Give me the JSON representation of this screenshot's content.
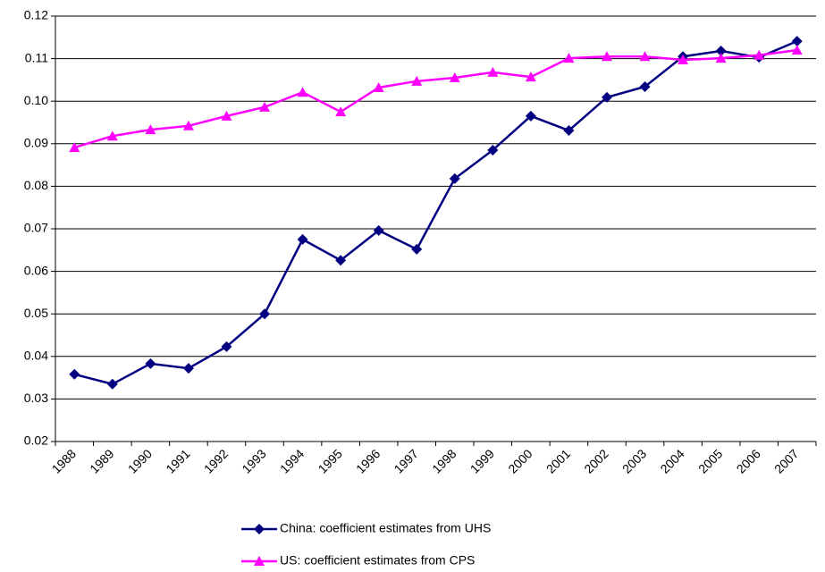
{
  "chart_data": {
    "type": "line",
    "categories": [
      "1988",
      "1989",
      "1990",
      "1991",
      "1992",
      "1993",
      "1994",
      "1995",
      "1996",
      "1997",
      "1998",
      "1999",
      "2000",
      "2001",
      "2002",
      "2003",
      "2004",
      "2005",
      "2006",
      "2007"
    ],
    "series": [
      {
        "name": "China: coefficient estimates from UHS",
        "color": "#000080",
        "marker": "diamond",
        "values": [
          0.0358,
          0.0335,
          0.0383,
          0.0372,
          0.0423,
          0.05,
          0.0675,
          0.0626,
          0.0696,
          0.0652,
          0.0818,
          0.0885,
          0.0965,
          0.0931,
          0.1009,
          0.1034,
          0.1105,
          0.1118,
          0.1103,
          0.1141
        ]
      },
      {
        "name": "US: coefficient estimates from CPS",
        "color": "#ff00ff",
        "marker": "triangle",
        "values": [
          0.0891,
          0.0918,
          0.0933,
          0.0942,
          0.0965,
          0.0986,
          0.1021,
          0.0975,
          0.1032,
          0.1047,
          0.1055,
          0.1068,
          0.1057,
          0.1101,
          0.1105,
          0.1105,
          0.1097,
          0.1101,
          0.1108,
          0.112
        ]
      }
    ],
    "ylim": [
      0.02,
      0.12
    ],
    "yticks": [
      0.02,
      0.03,
      0.04,
      0.05,
      0.06,
      0.07,
      0.08,
      0.09,
      {
        "value": 0.1,
        "label": "0.10"
      },
      0.11,
      0.12
    ],
    "grid": true,
    "legend": "bottom"
  }
}
